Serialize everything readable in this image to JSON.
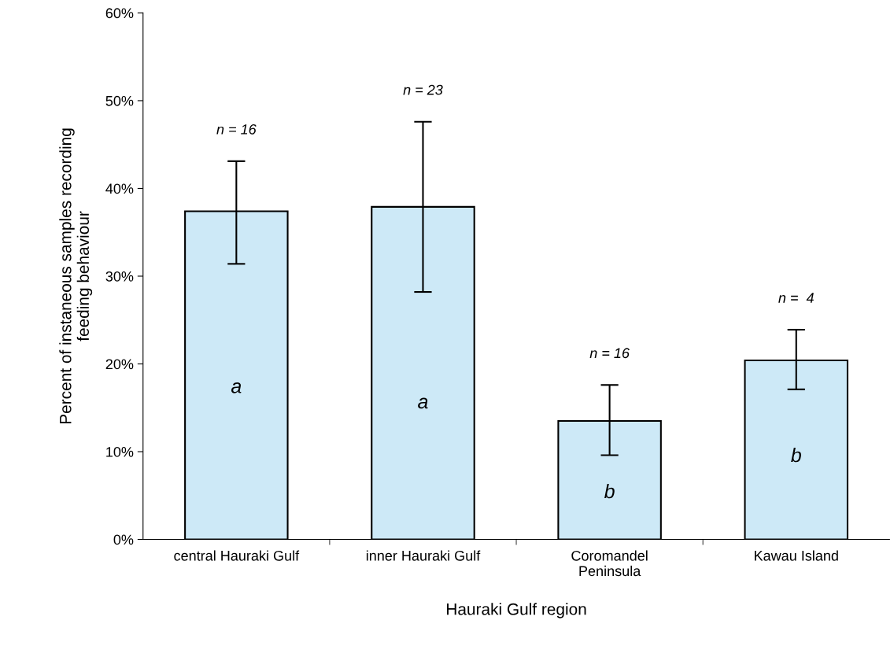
{
  "chart_data": {
    "type": "bar",
    "xlabel": "Hauraki Gulf region",
    "ylabel": "Percent of instaneous samples recording\nfeeding behaviour",
    "categories": [
      "central Hauraki Gulf",
      "inner Hauraki Gulf",
      "Coromandel\nPeninsula",
      "Kawau Island"
    ],
    "values": [
      37.4,
      37.9,
      13.5,
      20.4
    ],
    "errors": [
      [
        31.4,
        43.1
      ],
      [
        28.2,
        47.6
      ],
      [
        9.6,
        17.6
      ],
      [
        17.1,
        23.9
      ]
    ],
    "color": "#cde9f7",
    "ylim": [
      0,
      60
    ],
    "yticks": [
      {
        "value": 0,
        "label": "0%"
      },
      {
        "value": 10,
        "label": "10%"
      },
      {
        "value": 20,
        "label": "20%"
      },
      {
        "value": 30,
        "label": "30%"
      },
      {
        "value": 40,
        "label": "40%"
      },
      {
        "value": 50,
        "label": "50%"
      },
      {
        "value": 60,
        "label": "60%"
      }
    ],
    "grid": false,
    "annotations": [
      "n = 16",
      "n = 23",
      "n = 16",
      "n =  4",
      "a",
      "a",
      "b",
      "b"
    ]
  }
}
